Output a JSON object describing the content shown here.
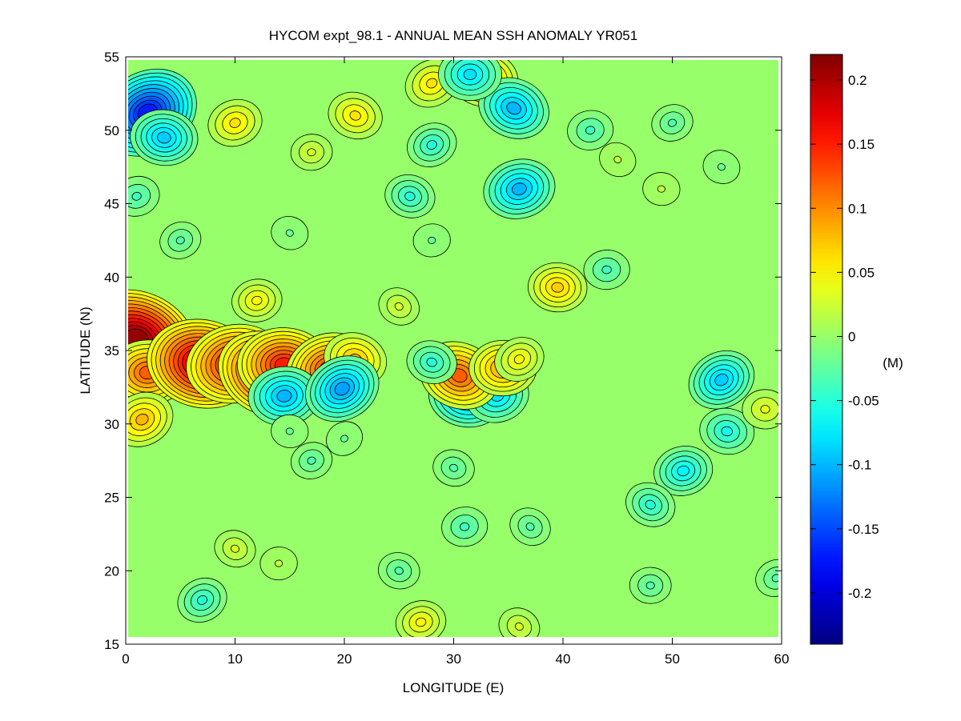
{
  "chart_data": {
    "type": "heatmap",
    "title": "HYCOM expt_98.1 - ANNUAL MEAN SSH ANOMALY YR051",
    "xlabel": "LONGITUDE (E)",
    "ylabel": "LATITUDE (N)",
    "xlim": [
      0,
      60
    ],
    "ylim": [
      15,
      55
    ],
    "x_ticks": [
      0,
      10,
      20,
      30,
      40,
      50,
      60
    ],
    "y_ticks": [
      15,
      20,
      25,
      30,
      35,
      40,
      45,
      50,
      55
    ],
    "colorbar": {
      "label": "(M)",
      "range": [
        -0.24,
        0.22
      ],
      "ticks": [
        -0.2,
        -0.15,
        -0.1,
        -0.05,
        0,
        0.05,
        0.1,
        0.15,
        0.2
      ],
      "colormap": "jet"
    },
    "background_value": 0,
    "features": [
      {
        "lon": 2,
        "lat": 51.2,
        "value": -0.17
      },
      {
        "lon": 3.5,
        "lat": 49.5,
        "value": -0.09
      },
      {
        "lon": 1,
        "lat": 45.5,
        "value": -0.04
      },
      {
        "lon": 1,
        "lat": 35.8,
        "value": 0.21
      },
      {
        "lon": 2,
        "lat": 33.5,
        "value": 0.12
      },
      {
        "lon": 1.5,
        "lat": 30.3,
        "value": 0.08
      },
      {
        "lon": 7,
        "lat": 34.1,
        "value": 0.19
      },
      {
        "lon": 10,
        "lat": 34.1,
        "value": 0.16
      },
      {
        "lon": 13,
        "lat": 33.4,
        "value": 0.17
      },
      {
        "lon": 14.5,
        "lat": 34.0,
        "value": 0.15
      },
      {
        "lon": 18.5,
        "lat": 33.8,
        "value": 0.13
      },
      {
        "lon": 21,
        "lat": 34.4,
        "value": 0.08
      },
      {
        "lon": 14.5,
        "lat": 31.9,
        "value": -0.1
      },
      {
        "lon": 19.8,
        "lat": 32.4,
        "value": -0.11
      },
      {
        "lon": 31.2,
        "lat": 31.9,
        "value": -0.11
      },
      {
        "lon": 34,
        "lat": 31.9,
        "value": -0.08
      },
      {
        "lon": 30.5,
        "lat": 33.3,
        "value": 0.12
      },
      {
        "lon": 34.5,
        "lat": 33.8,
        "value": 0.09
      },
      {
        "lon": 36,
        "lat": 34.4,
        "value": 0.05
      },
      {
        "lon": 28,
        "lat": 34.2,
        "value": -0.05
      },
      {
        "lon": 12,
        "lat": 38.4,
        "value": 0.05
      },
      {
        "lon": 25,
        "lat": 38.0,
        "value": 0.03
      },
      {
        "lon": 39.5,
        "lat": 39.3,
        "value": 0.07
      },
      {
        "lon": 10,
        "lat": 50.5,
        "value": 0.06
      },
      {
        "lon": 21,
        "lat": 51.0,
        "value": 0.06
      },
      {
        "lon": 17,
        "lat": 48.5,
        "value": 0.03
      },
      {
        "lon": 28,
        "lat": 53.2,
        "value": 0.06
      },
      {
        "lon": 32.8,
        "lat": 53.5,
        "value": 0.09
      },
      {
        "lon": 36,
        "lat": 46.0,
        "value": -0.1
      },
      {
        "lon": 35.5,
        "lat": 51.5,
        "value": -0.1
      },
      {
        "lon": 31.5,
        "lat": 53.8,
        "value": -0.08
      },
      {
        "lon": 28,
        "lat": 49.0,
        "value": -0.05
      },
      {
        "lon": 26,
        "lat": 45.5,
        "value": -0.05
      },
      {
        "lon": 42.5,
        "lat": 50.0,
        "value": -0.04
      },
      {
        "lon": 45,
        "lat": 48.0,
        "value": 0.02
      },
      {
        "lon": 49,
        "lat": 46.0,
        "value": 0.02
      },
      {
        "lon": 50,
        "lat": 50.5,
        "value": -0.03
      },
      {
        "lon": 54.5,
        "lat": 47.5,
        "value": -0.02
      },
      {
        "lon": 44,
        "lat": 40.5,
        "value": -0.04
      },
      {
        "lon": 54.5,
        "lat": 33.0,
        "value": -0.09
      },
      {
        "lon": 55,
        "lat": 29.5,
        "value": -0.06
      },
      {
        "lon": 51,
        "lat": 26.8,
        "value": -0.07
      },
      {
        "lon": 48,
        "lat": 24.5,
        "value": -0.05
      },
      {
        "lon": 58.5,
        "lat": 31.0,
        "value": 0.04
      },
      {
        "lon": 59.5,
        "lat": 19.5,
        "value": -0.03
      },
      {
        "lon": 30,
        "lat": 27.0,
        "value": -0.03
      },
      {
        "lon": 31,
        "lat": 23.0,
        "value": -0.04
      },
      {
        "lon": 37,
        "lat": 23.0,
        "value": -0.03
      },
      {
        "lon": 15,
        "lat": 29.5,
        "value": -0.02
      },
      {
        "lon": 17,
        "lat": 27.5,
        "value": -0.03
      },
      {
        "lon": 10,
        "lat": 21.5,
        "value": 0.03
      },
      {
        "lon": 14,
        "lat": 20.5,
        "value": 0.02
      },
      {
        "lon": 7,
        "lat": 18.0,
        "value": -0.05
      },
      {
        "lon": 25,
        "lat": 20.0,
        "value": -0.03
      },
      {
        "lon": 27,
        "lat": 16.5,
        "value": 0.05
      },
      {
        "lon": 36,
        "lat": 16.2,
        "value": 0.03
      },
      {
        "lon": 48,
        "lat": 19.0,
        "value": -0.03
      },
      {
        "lon": 5,
        "lat": 42.5,
        "value": -0.03
      },
      {
        "lon": 15,
        "lat": 43.0,
        "value": -0.02
      },
      {
        "lon": 28,
        "lat": 42.5,
        "value": -0.02
      },
      {
        "lon": 20,
        "lat": 29.0,
        "value": -0.02
      }
    ]
  }
}
